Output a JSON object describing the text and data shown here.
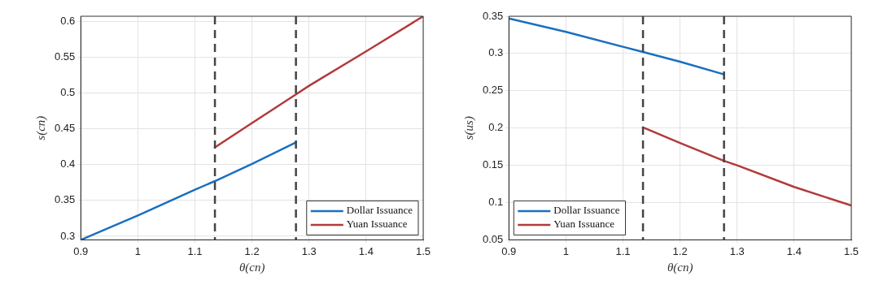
{
  "chart_data": [
    {
      "type": "line",
      "xlabel": "θ(cn)",
      "ylabel": "s(cn)",
      "xlim": [
        0.9,
        1.5
      ],
      "ylim": [
        0.295,
        0.607
      ],
      "xticks": [
        0.9,
        1,
        1.1,
        1.2,
        1.3,
        1.4,
        1.5
      ],
      "yticks": [
        0.3,
        0.35,
        0.4,
        0.45,
        0.5,
        0.55,
        0.6
      ],
      "grid": true,
      "legend": "bottom right",
      "line_style": "solid",
      "marker": "none",
      "ref_lines": [
        {
          "axis": "x",
          "value": 1.135,
          "color": "#444444",
          "line_style": "dashed"
        },
        {
          "axis": "x",
          "value": 1.277,
          "color": "#444444",
          "line_style": "dashed"
        }
      ],
      "series": [
        {
          "name": "Dollar Issuance",
          "color": "#1a6fc0",
          "x": [
            0.9,
            1.0,
            1.1,
            1.135,
            1.2,
            1.277
          ],
          "values": [
            0.295,
            0.329,
            0.365,
            0.377,
            0.401,
            0.431
          ]
        },
        {
          "name": "Yuan Issuance",
          "color": "#b23a3a",
          "x": [
            1.135,
            1.2,
            1.277,
            1.3,
            1.4,
            1.5
          ],
          "values": [
            0.424,
            0.458,
            0.498,
            0.51,
            0.558,
            0.607
          ]
        }
      ]
    },
    {
      "type": "line",
      "xlabel": "θ(cn)",
      "ylabel": "s(us)",
      "xlim": [
        0.9,
        1.5
      ],
      "ylim": [
        0.05,
        0.35
      ],
      "xticks": [
        0.9,
        1,
        1.1,
        1.2,
        1.3,
        1.4,
        1.5
      ],
      "yticks": [
        0.05,
        0.1,
        0.15,
        0.2,
        0.25,
        0.3,
        0.35
      ],
      "grid": true,
      "legend": "bottom left",
      "line_style": "solid",
      "marker": "none",
      "ref_lines": [
        {
          "axis": "x",
          "value": 1.135,
          "color": "#444444",
          "line_style": "dashed"
        },
        {
          "axis": "x",
          "value": 1.277,
          "color": "#444444",
          "line_style": "dashed"
        }
      ],
      "series": [
        {
          "name": "Dollar Issuance",
          "color": "#1a6fc0",
          "x": [
            0.9,
            1.0,
            1.1,
            1.135,
            1.2,
            1.277
          ],
          "values": [
            0.347,
            0.329,
            0.309,
            0.302,
            0.289,
            0.272
          ]
        },
        {
          "name": "Yuan Issuance",
          "color": "#b23a3a",
          "x": [
            1.135,
            1.2,
            1.277,
            1.3,
            1.4,
            1.5
          ],
          "values": [
            0.201,
            0.18,
            0.156,
            0.15,
            0.121,
            0.096
          ]
        }
      ]
    }
  ]
}
